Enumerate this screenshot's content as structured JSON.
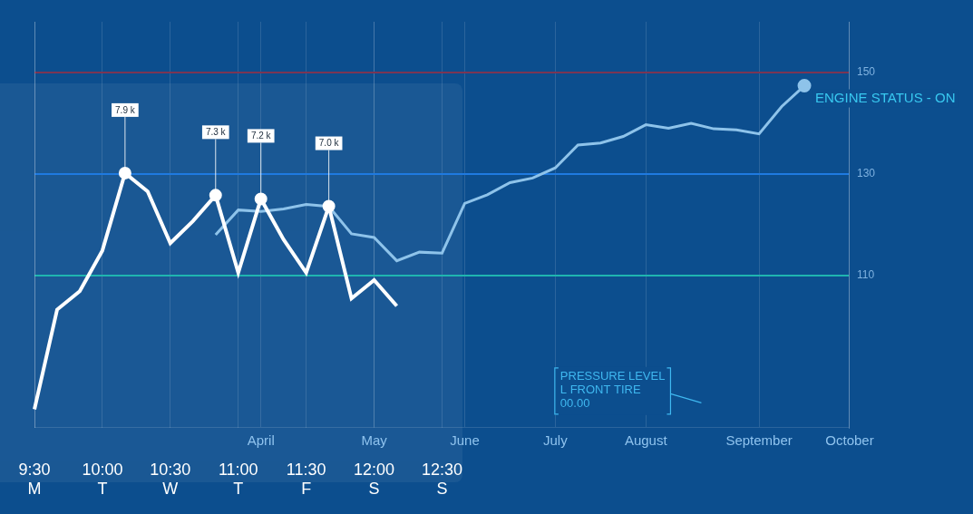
{
  "chart_data": {
    "type": "line",
    "categories": [
      "9:30",
      null,
      null,
      "10:00",
      null,
      null,
      "10:30",
      null,
      null,
      "11:00",
      null,
      null,
      "11:30",
      null,
      null,
      "12:00",
      null,
      null,
      "12:30",
      null,
      null,
      null,
      null,
      null,
      null,
      null,
      null,
      null,
      null,
      null,
      null,
      null,
      null,
      null,
      null,
      null,
      null
    ],
    "weekdays": [
      "M",
      null,
      null,
      "T",
      null,
      null,
      "W",
      null,
      null,
      "T",
      null,
      null,
      "F",
      null,
      null,
      "S",
      null,
      null,
      "S",
      null,
      null,
      null,
      null,
      null,
      null,
      null,
      null,
      null,
      null,
      null,
      null,
      null,
      null,
      null,
      null,
      null,
      null
    ],
    "months": [
      null,
      null,
      null,
      null,
      null,
      null,
      null,
      null,
      null,
      null,
      "April",
      null,
      null,
      null,
      null,
      "May",
      null,
      null,
      null,
      "June",
      null,
      null,
      null,
      "July",
      null,
      null,
      null,
      "August",
      null,
      null,
      null,
      null,
      "September",
      null,
      null,
      null,
      "October"
    ],
    "series": [
      {
        "color": "#ffffff",
        "axis": "y",
        "values": [
          1500,
          4200,
          4700,
          5800,
          7900,
          7400,
          6000,
          6600,
          7300,
          5200,
          7200,
          6100,
          5200,
          7000,
          4500,
          5000,
          4300,
          null,
          null,
          null,
          null,
          null,
          null,
          null,
          null,
          null,
          null,
          null,
          null,
          null,
          null,
          null,
          null,
          null,
          null,
          null,
          null
        ],
        "value_labels": [
          null,
          null,
          null,
          null,
          "7.9 k",
          null,
          null,
          null,
          "7.3 k",
          null,
          "7.2 k",
          null,
          null,
          "7.0 k",
          null,
          null,
          null,
          null,
          null,
          null,
          null,
          null,
          null,
          null,
          null,
          null,
          null,
          null,
          null,
          null,
          null,
          null,
          null,
          null,
          null,
          null,
          null
        ]
      },
      {
        "color": "#8ec3ea",
        "axis": "y2",
        "values": [
          null,
          null,
          null,
          null,
          null,
          null,
          null,
          null,
          118,
          122.9,
          122.6,
          123.1,
          124,
          123.6,
          118.2,
          117.5,
          112.9,
          114.6,
          114.4,
          124.2,
          125.9,
          128.3,
          129.2,
          131.2,
          135.7,
          136.1,
          137.4,
          139.7,
          139,
          140,
          138.9,
          138.7,
          137.9,
          143.3,
          147.4,
          null,
          null
        ]
      }
    ],
    "ylim": [
      1000,
      12000
    ],
    "yticks": [],
    "y2lim": [
      80,
      160
    ],
    "y2ticks": [
      110,
      130,
      150
    ],
    "grid": true,
    "data_labels": true,
    "annotations": [
      {
        "text": "ENGINE STATUS - ON"
      },
      {
        "text": [
          "PRESSURE LEVEL",
          "L FRONT TIRE",
          "00.00"
        ]
      }
    ]
  }
}
